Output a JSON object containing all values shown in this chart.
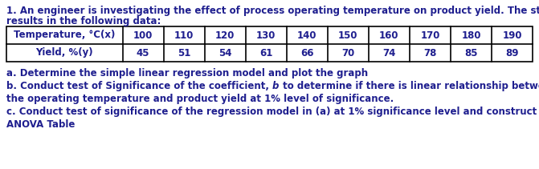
{
  "title_line1": "1. An engineer is investigating the effect of process operating temperature on product yield. The study",
  "title_line2": "results in the following data:",
  "table_header": [
    "Temperature, °C(x)",
    "100",
    "110",
    "120",
    "130",
    "140",
    "150",
    "160",
    "170",
    "180",
    "190"
  ],
  "table_row2_label": "Yield, %(y)",
  "table_row2_values": [
    "45",
    "51",
    "54",
    "61",
    "66",
    "70",
    "74",
    "78",
    "85",
    "89"
  ],
  "part_a": "a. Determine the simple linear regression model and plot the graph",
  "part_b_pre": "b. Conduct test of Significance of the coefficient, ",
  "part_b_italic": "b",
  "part_b_post": " to determine if there is linear relationship between",
  "part_b_line2": "the operating temperature and product yield at 1% level of significance.",
  "part_c_line1": "c. Conduct test of significance of the regression model in (a) at 1% significance level and construct the",
  "part_c_line2": "ANOVA Table",
  "bg_color": "#ffffff",
  "text_color": "#1f1f8f",
  "table_text_color": "#1f1f8f",
  "table_border_color": "#000000",
  "font_size": 8.5,
  "col_widths_ratio": [
    1.7,
    0.6,
    0.6,
    0.6,
    0.6,
    0.6,
    0.6,
    0.6,
    0.6,
    0.6,
    0.6
  ]
}
